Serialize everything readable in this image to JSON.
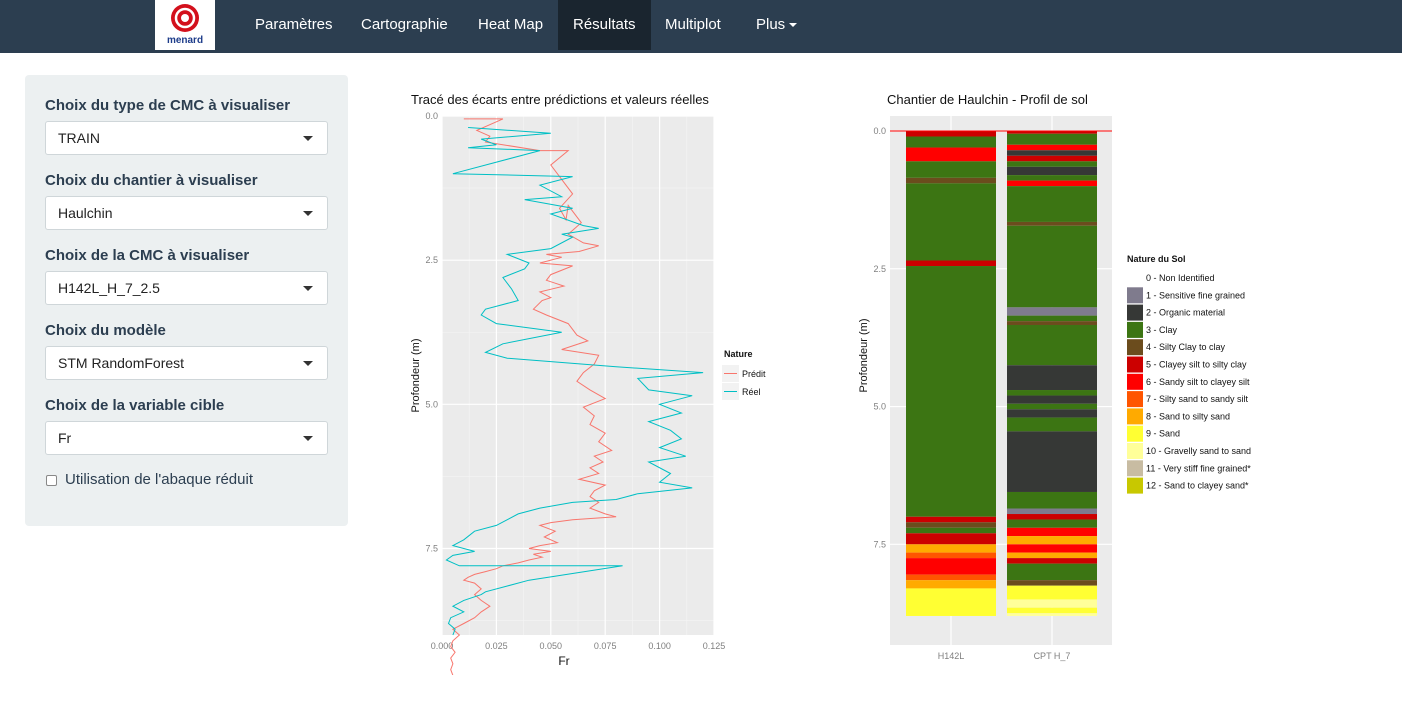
{
  "brand": {
    "logo_text": "menard"
  },
  "nav": {
    "items": [
      {
        "label": "Paramètres",
        "active": false
      },
      {
        "label": "Cartographie",
        "active": false
      },
      {
        "label": "Heat Map",
        "active": false
      },
      {
        "label": "Résultats",
        "active": true
      },
      {
        "label": "Multiplot",
        "active": false
      },
      {
        "label": "Plus",
        "active": false
      }
    ]
  },
  "sidebar": {
    "cmc_type": {
      "label": "Choix du type de CMC à visualiser",
      "value": "TRAIN"
    },
    "chantier": {
      "label": "Choix du chantier à visualiser",
      "value": "Haulchin"
    },
    "cmc": {
      "label": "Choix de la CMC à visualiser",
      "value": "H142L_H_7_2.5"
    },
    "model": {
      "label": "Choix du modèle",
      "value": "STM RandomForest"
    },
    "target": {
      "label": "Choix de la variable cible",
      "value": "Fr"
    },
    "checkbox": {
      "label": "Utilisation de l'abaque réduit",
      "checked": false
    }
  },
  "chart_data": [
    {
      "type": "line",
      "title": "Tracé des écarts entre prédictions et valeurs réelles",
      "xlabel": "Fr",
      "ylabel": "Profondeur (m)",
      "xlim": [
        0,
        0.125
      ],
      "ylim": [
        0,
        9
      ],
      "y_reversed": true,
      "x_ticks": [
        "0.000",
        "0.025",
        "0.050",
        "0.075",
        "0.100",
        "0.125"
      ],
      "x_tick_values": [
        0,
        0.025,
        0.05,
        0.075,
        0.1,
        0.125
      ],
      "y_ticks": [
        "0.0",
        "2.5",
        "5.0",
        "7.5"
      ],
      "y_tick_values": [
        0,
        2.5,
        5,
        7.5
      ],
      "grid": true,
      "legend_position": "right",
      "legend_title": "Nature",
      "series": [
        {
          "name": "Prédit",
          "color": "#f8766d",
          "x": [
            0.01,
            0.028,
            0.016,
            0.022,
            0.02,
            0.045,
            0.058,
            0.05,
            0.055,
            0.06,
            0.054,
            0.057,
            0.058,
            0.064,
            0.058,
            0.065,
            0.072,
            0.063,
            0.048,
            0.055,
            0.045,
            0.06,
            0.05,
            0.048,
            0.052,
            0.056,
            0.045,
            0.05,
            0.046,
            0.042,
            0.048,
            0.058,
            0.062,
            0.067,
            0.055,
            0.072,
            0.07,
            0.065,
            0.062,
            0.068,
            0.075,
            0.065,
            0.07,
            0.068,
            0.075,
            0.072,
            0.078,
            0.07,
            0.074,
            0.068,
            0.072,
            0.063,
            0.075,
            0.07,
            0.068,
            0.072,
            0.068,
            0.075,
            0.08,
            0.06,
            0.05,
            0.045,
            0.052,
            0.047,
            0.053,
            0.045,
            0.04,
            0.05,
            0.042,
            0.046,
            0.04,
            0.035,
            0.028,
            0.025,
            0.02,
            0.015,
            0.012,
            0.01,
            0.015,
            0.018,
            0.015,
            0.018,
            0.022,
            0.018,
            0.015,
            0.01,
            0.005,
            0.008,
            0.005,
            0.004,
            0.006,
            0.004,
            0.005,
            0.004,
            0.005
          ],
          "y": [
            0.05,
            0.05,
            0.25,
            0.35,
            0.45,
            0.6,
            0.6,
            0.85,
            1.1,
            1.35,
            1.6,
            1.8,
            1.55,
            1.85,
            2.05,
            2.2,
            2.25,
            2.35,
            2.4,
            2.45,
            2.55,
            2.6,
            2.75,
            2.85,
            2.9,
            2.95,
            3.05,
            3.15,
            3.2,
            3.35,
            3.45,
            3.6,
            3.8,
            3.9,
            4.05,
            4.15,
            4.3,
            4.45,
            4.6,
            4.75,
            4.9,
            5.05,
            5.2,
            5.35,
            5.5,
            5.65,
            5.8,
            5.9,
            6.0,
            6.1,
            6.2,
            6.3,
            6.4,
            6.5,
            6.6,
            6.7,
            6.8,
            6.9,
            6.95,
            7.0,
            7.05,
            7.1,
            7.2,
            7.3,
            7.4,
            7.45,
            7.5,
            7.55,
            7.6,
            7.65,
            7.7,
            7.75,
            7.8,
            7.85,
            7.9,
            7.95,
            8.0,
            8.05,
            8.1,
            8.2,
            8.3,
            8.4,
            8.5,
            8.6,
            8.7,
            8.8,
            8.9,
            9.0,
            9.1,
            9.2,
            9.3,
            9.4,
            9.5,
            9.6,
            9.7
          ]
        },
        {
          "name": "Réel",
          "color": "#00bfc4",
          "x": [
            0.012,
            0.05,
            0.018,
            0.025,
            0.012,
            0.045,
            0.005,
            0.06,
            0.045,
            0.055,
            0.038,
            0.06,
            0.05,
            0.065,
            0.072,
            0.055,
            0.06,
            0.05,
            0.03,
            0.04,
            0.038,
            0.028,
            0.032,
            0.035,
            0.02,
            0.018,
            0.025,
            0.055,
            0.028,
            0.02,
            0.03,
            0.08,
            0.12,
            0.09,
            0.095,
            0.115,
            0.1,
            0.11,
            0.095,
            0.105,
            0.11,
            0.1,
            0.112,
            0.095,
            0.105,
            0.1,
            0.115,
            0.09,
            0.085,
            0.08,
            0.06,
            0.045,
            0.035,
            0.03,
            0.025,
            0.015,
            0.01,
            0.005,
            0.015,
            0.005,
            0.002,
            0.005,
            0.008,
            0.083,
            0.04,
            0.03,
            0.02,
            0.018,
            0.01,
            0.005,
            0.01,
            0.004,
            0.003,
            0.006,
            0.005
          ],
          "y": [
            0.2,
            0.3,
            0.4,
            0.5,
            0.55,
            0.6,
            1.0,
            1.05,
            1.2,
            1.4,
            1.45,
            1.6,
            1.7,
            1.9,
            1.95,
            2.05,
            2.1,
            2.3,
            2.4,
            2.55,
            2.65,
            2.8,
            3.0,
            3.2,
            3.35,
            3.45,
            3.6,
            3.75,
            3.95,
            4.1,
            4.2,
            4.35,
            4.45,
            4.55,
            4.75,
            4.85,
            5.0,
            5.15,
            5.3,
            5.45,
            5.6,
            5.75,
            5.9,
            6.0,
            6.2,
            6.35,
            6.45,
            6.55,
            6.6,
            6.65,
            6.7,
            6.8,
            6.9,
            7.0,
            7.1,
            7.2,
            7.35,
            7.45,
            7.55,
            7.62,
            7.7,
            7.75,
            7.8,
            7.8,
            8.05,
            8.15,
            8.25,
            8.3,
            8.4,
            8.5,
            8.6,
            8.7,
            8.8,
            8.9,
            9.0
          ]
        }
      ]
    },
    {
      "type": "bar",
      "title": "Chantier de  Haulchin  - Profil de sol",
      "ylabel": "Profondeur (m)",
      "ylim": [
        0,
        9
      ],
      "y_reversed": true,
      "y_ticks": [
        "0.0",
        "2.5",
        "5.0",
        "7.5"
      ],
      "y_tick_values": [
        0,
        2.5,
        5,
        7.5
      ],
      "categories": [
        "H142L",
        "CPT H_7"
      ],
      "reference_line_depth": 0,
      "legend_title": "Nature du Sol",
      "legend_position": "right",
      "classes": [
        {
          "code": 0,
          "name": "0 - Non Identified",
          "color": "#ffffff"
        },
        {
          "code": 1,
          "name": "1 - Sensitive fine grained",
          "color": "#7f7b8d"
        },
        {
          "code": 2,
          "name": "2 -  Organic material",
          "color": "#363836"
        },
        {
          "code": 3,
          "name": "3 - Clay",
          "color": "#3c7513"
        },
        {
          "code": 4,
          "name": "4 - Silty Clay to clay",
          "color": "#6b4c1d"
        },
        {
          "code": 5,
          "name": "5 - Clayey silt to silty clay",
          "color": "#cc0000"
        },
        {
          "code": 6,
          "name": "6 - Sandy silt to clayey silt",
          "color": "#ff0000"
        },
        {
          "code": 7,
          "name": "7 - Silty sand to sandy silt",
          "color": "#ff5500"
        },
        {
          "code": 8,
          "name": "8 - Sand to silty sand",
          "color": "#ffaa00"
        },
        {
          "code": 9,
          "name": "9 - Sand",
          "color": "#ffff33"
        },
        {
          "code": 10,
          "name": "10 - Gravelly sand to sand",
          "color": "#ffff99"
        },
        {
          "code": 11,
          "name": "11 - Very stiff fine grained*",
          "color": "#c8bca2"
        },
        {
          "code": 12,
          "name": "12 - Sand to clayey sand*",
          "color": "#c8c800"
        }
      ],
      "columns": [
        {
          "name": "H142L",
          "layers": [
            {
              "top": 0.0,
              "bottom": 0.1,
              "code": 5
            },
            {
              "top": 0.1,
              "bottom": 0.3,
              "code": 3
            },
            {
              "top": 0.3,
              "bottom": 0.55,
              "code": 6
            },
            {
              "top": 0.55,
              "bottom": 0.85,
              "code": 3
            },
            {
              "top": 0.85,
              "bottom": 0.95,
              "code": 4
            },
            {
              "top": 0.95,
              "bottom": 2.35,
              "code": 3
            },
            {
              "top": 2.35,
              "bottom": 2.45,
              "code": 5
            },
            {
              "top": 2.45,
              "bottom": 7.0,
              "code": 3
            },
            {
              "top": 7.0,
              "bottom": 7.1,
              "code": 5
            },
            {
              "top": 7.1,
              "bottom": 7.2,
              "code": 4
            },
            {
              "top": 7.2,
              "bottom": 7.3,
              "code": 3
            },
            {
              "top": 7.3,
              "bottom": 7.5,
              "code": 5
            },
            {
              "top": 7.5,
              "bottom": 7.65,
              "code": 8
            },
            {
              "top": 7.65,
              "bottom": 7.75,
              "code": 7
            },
            {
              "top": 7.75,
              "bottom": 8.05,
              "code": 6
            },
            {
              "top": 8.05,
              "bottom": 8.15,
              "code": 7
            },
            {
              "top": 8.15,
              "bottom": 8.3,
              "code": 8
            },
            {
              "top": 8.3,
              "bottom": 8.8,
              "code": 9
            }
          ]
        },
        {
          "name": "CPT H_7",
          "layers": [
            {
              "top": 0.0,
              "bottom": 0.05,
              "code": 5
            },
            {
              "top": 0.05,
              "bottom": 0.25,
              "code": 3
            },
            {
              "top": 0.25,
              "bottom": 0.35,
              "code": 6
            },
            {
              "top": 0.35,
              "bottom": 0.45,
              "code": 2
            },
            {
              "top": 0.45,
              "bottom": 0.55,
              "code": 5
            },
            {
              "top": 0.55,
              "bottom": 0.65,
              "code": 3
            },
            {
              "top": 0.65,
              "bottom": 0.8,
              "code": 2
            },
            {
              "top": 0.8,
              "bottom": 0.9,
              "code": 3
            },
            {
              "top": 0.9,
              "bottom": 1.0,
              "code": 6
            },
            {
              "top": 1.0,
              "bottom": 1.65,
              "code": 3
            },
            {
              "top": 1.65,
              "bottom": 1.72,
              "code": 4
            },
            {
              "top": 1.72,
              "bottom": 3.2,
              "code": 3
            },
            {
              "top": 3.2,
              "bottom": 3.35,
              "code": 1
            },
            {
              "top": 3.35,
              "bottom": 3.45,
              "code": 3
            },
            {
              "top": 3.45,
              "bottom": 3.52,
              "code": 4
            },
            {
              "top": 3.52,
              "bottom": 4.25,
              "code": 3
            },
            {
              "top": 4.25,
              "bottom": 4.7,
              "code": 2
            },
            {
              "top": 4.7,
              "bottom": 4.8,
              "code": 3
            },
            {
              "top": 4.8,
              "bottom": 4.95,
              "code": 2
            },
            {
              "top": 4.95,
              "bottom": 5.05,
              "code": 3
            },
            {
              "top": 5.05,
              "bottom": 5.2,
              "code": 2
            },
            {
              "top": 5.2,
              "bottom": 5.45,
              "code": 3
            },
            {
              "top": 5.45,
              "bottom": 6.55,
              "code": 2
            },
            {
              "top": 6.55,
              "bottom": 6.85,
              "code": 3
            },
            {
              "top": 6.85,
              "bottom": 6.95,
              "code": 1
            },
            {
              "top": 6.95,
              "bottom": 7.05,
              "code": 5
            },
            {
              "top": 7.05,
              "bottom": 7.2,
              "code": 3
            },
            {
              "top": 7.2,
              "bottom": 7.35,
              "code": 6
            },
            {
              "top": 7.35,
              "bottom": 7.5,
              "code": 8
            },
            {
              "top": 7.5,
              "bottom": 7.65,
              "code": 6
            },
            {
              "top": 7.65,
              "bottom": 7.75,
              "code": 8
            },
            {
              "top": 7.75,
              "bottom": 7.85,
              "code": 5
            },
            {
              "top": 7.85,
              "bottom": 8.15,
              "code": 3
            },
            {
              "top": 8.15,
              "bottom": 8.25,
              "code": 4
            },
            {
              "top": 8.25,
              "bottom": 8.5,
              "code": 9
            },
            {
              "top": 8.5,
              "bottom": 8.65,
              "code": 10
            },
            {
              "top": 8.65,
              "bottom": 8.75,
              "code": 9
            },
            {
              "top": 8.75,
              "bottom": 8.8,
              "code": 10
            }
          ]
        }
      ]
    }
  ]
}
